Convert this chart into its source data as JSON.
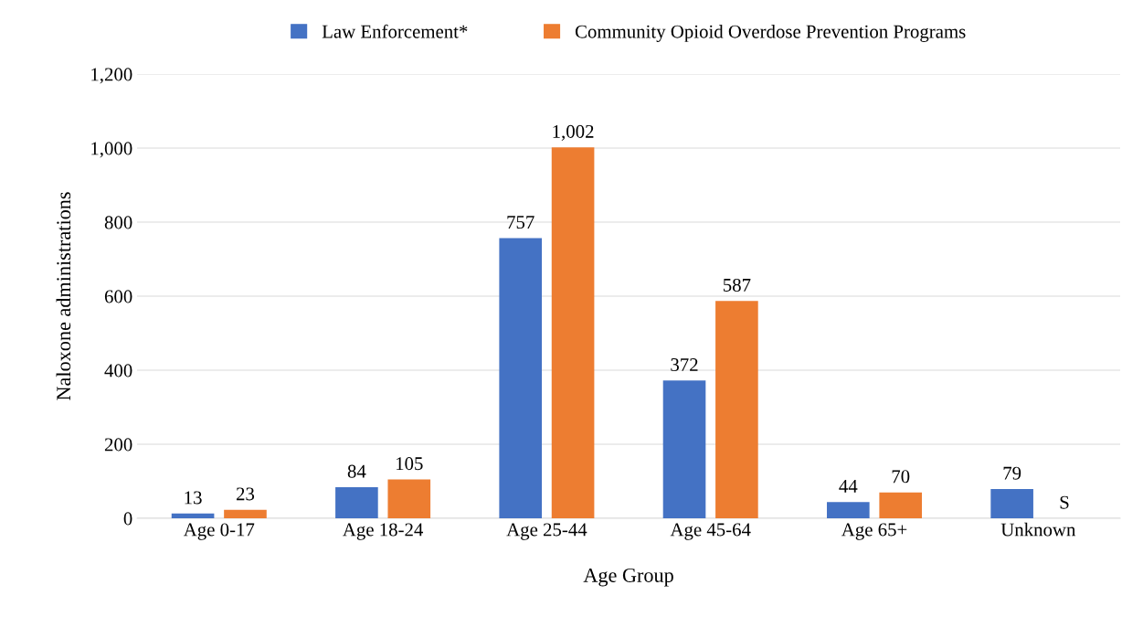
{
  "chart_data": {
    "type": "bar",
    "xlabel": "Age Group",
    "ylabel": "Naloxone administrations",
    "categories": [
      "Age 0-17",
      "Age 18-24",
      "Age 25-44",
      "Age 45-64",
      "Age 65+",
      "Unknown"
    ],
    "series": [
      {
        "name": "Law Enforcement*",
        "color": "#4472c4",
        "values": [
          13,
          84,
          757,
          372,
          44,
          79
        ],
        "value_labels": [
          "13",
          "84",
          "757",
          "372",
          "44",
          "79"
        ]
      },
      {
        "name": "Community Opioid Overdose Prevention Programs",
        "color": "#ed7d31",
        "values": [
          23,
          105,
          1002,
          587,
          70,
          null
        ],
        "value_labels": [
          "23",
          "105",
          "1,002",
          "587",
          "70",
          "S"
        ]
      }
    ],
    "ylim": [
      0,
      1200
    ],
    "yticks": [
      0,
      {
        "value": 200,
        "label": "200"
      },
      {
        "value": 400,
        "label": "400"
      },
      {
        "value": 600,
        "label": "600"
      },
      {
        "value": 800,
        "label": "800"
      },
      {
        "value": 1000,
        "label": "1,000"
      },
      {
        "value": 1200,
        "label": "1,200"
      }
    ],
    "grid": "y",
    "legend": "top"
  }
}
